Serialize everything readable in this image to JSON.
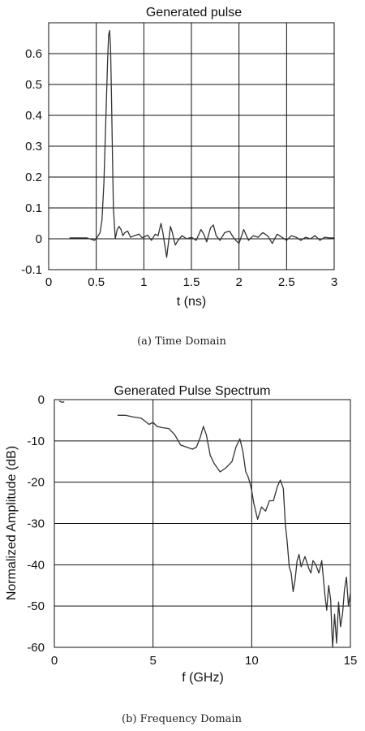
{
  "chart_data": [
    {
      "type": "line",
      "title": "Generated pulse",
      "xlabel": "t (ns)",
      "ylabel": "",
      "caption": "(a) Time Domain",
      "xlim": [
        0,
        3
      ],
      "ylim": [
        -0.1,
        0.7
      ],
      "xticks": [
        "0",
        "0.5",
        "1",
        "1.5",
        "2",
        "2.5",
        "3"
      ],
      "yticks": [
        "-0.1",
        "0",
        "0.1",
        "0.2",
        "0.3",
        "0.4",
        "0.5",
        "0.6"
      ],
      "grid": true,
      "series": [
        {
          "x": [
            0.22,
            0.3,
            0.4,
            0.45,
            0.48,
            0.5,
            0.52,
            0.54,
            0.56,
            0.58,
            0.6,
            0.62,
            0.63,
            0.64,
            0.65,
            0.66,
            0.67,
            0.68,
            0.7,
            0.72,
            0.74,
            0.76,
            0.78,
            0.8,
            0.83,
            0.86,
            0.9,
            0.95,
            0.98,
            1.0,
            1.04,
            1.08,
            1.12,
            1.15,
            1.18,
            1.2,
            1.22,
            1.24,
            1.26,
            1.28,
            1.3,
            1.33,
            1.36,
            1.4,
            1.45,
            1.5,
            1.55,
            1.6,
            1.63,
            1.66,
            1.7,
            1.73,
            1.76,
            1.8,
            1.85,
            1.9,
            1.95,
            2.0,
            2.05,
            2.1,
            2.15,
            2.2,
            2.25,
            2.3,
            2.35,
            2.4,
            2.45,
            2.5,
            2.55,
            2.6,
            2.65,
            2.7,
            2.75,
            2.8,
            2.85,
            2.9,
            2.95,
            3.0
          ],
          "y": [
            0.003,
            0.003,
            0.003,
            -0.002,
            -0.005,
            0.0,
            0.01,
            0.02,
            0.06,
            0.18,
            0.38,
            0.58,
            0.66,
            0.675,
            0.62,
            0.47,
            0.28,
            0.1,
            0.0,
            0.03,
            0.04,
            0.03,
            0.01,
            0.02,
            0.025,
            0.005,
            0.01,
            0.015,
            0.004,
            0.005,
            0.012,
            -0.005,
            0.015,
            0.01,
            0.05,
            0.02,
            -0.02,
            -0.06,
            -0.01,
            0.04,
            0.02,
            -0.02,
            -0.005,
            0.01,
            0.0,
            0.005,
            -0.005,
            0.03,
            0.015,
            -0.01,
            0.035,
            0.045,
            0.01,
            -0.005,
            0.02,
            0.025,
            0.0,
            -0.015,
            0.03,
            -0.005,
            0.01,
            0.005,
            0.02,
            0.01,
            -0.015,
            0.015,
            0.005,
            -0.005,
            0.01,
            0.005,
            -0.005,
            0.005,
            0.0,
            0.01,
            -0.005,
            0.005,
            0.003,
            0.003
          ]
        }
      ]
    },
    {
      "type": "line",
      "title": "Generated Pulse Spectrum",
      "xlabel": "f (GHz)",
      "ylabel": "Normalized Amplitude (dB)",
      "caption": "(b) Frequency Domain",
      "xlim": [
        0,
        15
      ],
      "ylim": [
        -60,
        0
      ],
      "xticks": [
        "0",
        "5",
        "10",
        "15"
      ],
      "yticks": [
        "0",
        "-10",
        "-20",
        "-30",
        "-40",
        "-50",
        "-60"
      ],
      "grid": true,
      "series": [
        {
          "x": [
            0.25,
            0.35,
            0.45,
            0.5
          ],
          "y": [
            -0.3,
            -0.6,
            -0.6,
            -0.5
          ]
        },
        {
          "x": [
            3.2,
            3.6,
            4.0,
            4.4,
            4.8,
            5.0,
            5.2,
            5.5,
            5.8,
            6.1,
            6.4,
            6.7,
            7.0,
            7.2,
            7.4,
            7.55,
            7.7,
            7.9,
            8.1,
            8.4,
            8.7,
            9.0,
            9.2,
            9.4,
            9.55,
            9.7,
            9.8,
            9.9,
            10.0,
            10.1,
            10.3,
            10.5,
            10.7,
            10.9,
            11.1,
            11.3,
            11.45,
            11.6,
            11.7,
            11.8,
            11.9,
            12.0,
            12.1,
            12.2,
            12.3,
            12.4,
            12.5,
            12.7,
            12.9,
            13.0,
            13.1,
            13.25,
            13.4,
            13.55,
            13.7,
            13.8,
            13.9,
            14.0,
            14.05,
            14.1,
            14.2,
            14.3,
            14.4,
            14.5,
            14.6,
            14.7,
            14.8,
            14.9,
            15.0
          ],
          "y": [
            -3.8,
            -3.8,
            -4.2,
            -4.5,
            -6.0,
            -5.5,
            -6.5,
            -6.8,
            -7.0,
            -8.5,
            -11.0,
            -11.5,
            -12.0,
            -11.5,
            -9.0,
            -6.5,
            -8.5,
            -13.5,
            -15.5,
            -17.5,
            -16.5,
            -15.0,
            -11.5,
            -9.5,
            -12.5,
            -17.5,
            -18.5,
            -20.0,
            -22.0,
            -25.0,
            -29.0,
            -26.0,
            -27.0,
            -24.5,
            -24.5,
            -21.0,
            -19.5,
            -21.5,
            -30.0,
            -34.5,
            -40.5,
            -42.0,
            -46.5,
            -43.5,
            -39.0,
            -37.5,
            -40.5,
            -38.0,
            -41.0,
            -42.0,
            -39.0,
            -40.0,
            -42.0,
            -39.0,
            -47.0,
            -51.0,
            -45.0,
            -48.5,
            -55.0,
            -60.0,
            -52.0,
            -59.0,
            -49.0,
            -55.0,
            -52.0,
            -46.0,
            -43.0,
            -50.0,
            -47.0
          ]
        }
      ]
    }
  ]
}
